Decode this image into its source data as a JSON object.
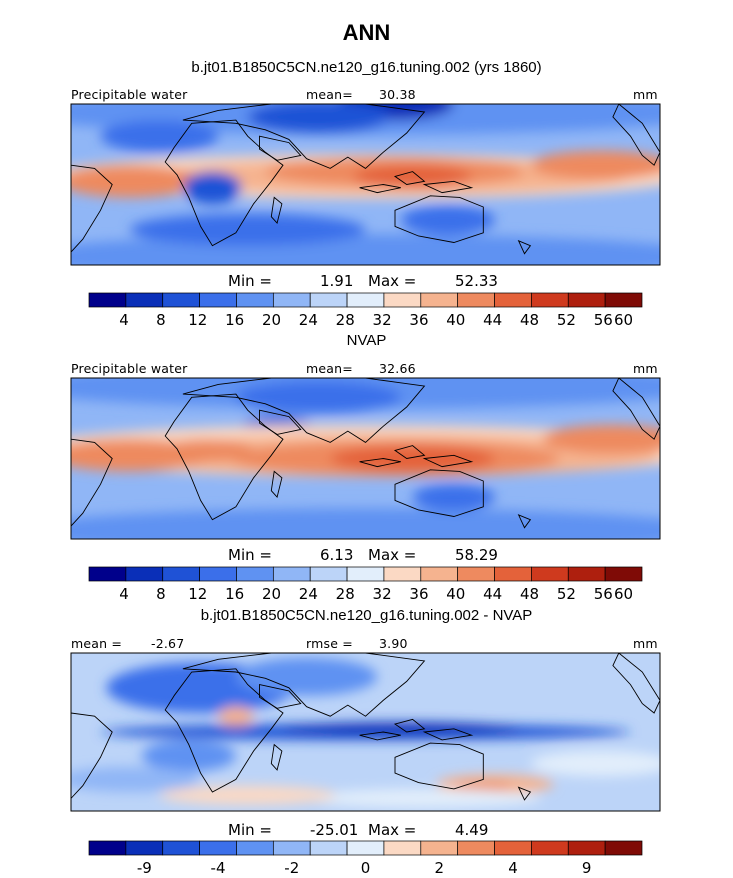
{
  "figure": {
    "title": "ANN",
    "model_case": "b.jt01.B1850C5CN.ne120_g16.tuning.002 (yrs 1860)",
    "obs_name": "NVAP",
    "diff_title": "b.jt01.B1850C5CN.ne120_g16.tuning.002 - NVAP"
  },
  "chart_data": [
    {
      "type": "heatmap",
      "panel": "model",
      "title": "b.jt01.B1850C5CN.ne120_g16.tuning.002 (yrs 1860)",
      "variable": "Precipitable water",
      "units": "mm",
      "mean_label": "mean=",
      "mean": "30.38",
      "min_label": "Min =",
      "min": "1.91",
      "max_label": "Max =",
      "max": "52.33",
      "colorbar_ticks": [
        "4",
        "8",
        "12",
        "16",
        "20",
        "24",
        "28",
        "32",
        "36",
        "40",
        "44",
        "48",
        "52",
        "56",
        "60"
      ],
      "colorbar_colors": [
        "#00008b",
        "#0a2fb8",
        "#1f52d6",
        "#3b6fea",
        "#5f92f2",
        "#90b6f6",
        "#bcd4f8",
        "#e2eefb",
        "#fbd9c4",
        "#f5b38f",
        "#ee8a5f",
        "#e4623a",
        "#cf3a1e",
        "#ae1f0e",
        "#7f0b06"
      ]
    },
    {
      "type": "heatmap",
      "panel": "obs",
      "title": "NVAP",
      "variable": "Precipitable water",
      "units": "mm",
      "mean_label": "mean=",
      "mean": "32.66",
      "min_label": "Min =",
      "min": "6.13",
      "max_label": "Max =",
      "max": "58.29",
      "colorbar_ticks": [
        "4",
        "8",
        "12",
        "16",
        "20",
        "24",
        "28",
        "32",
        "36",
        "40",
        "44",
        "48",
        "52",
        "56",
        "60"
      ],
      "colorbar_colors": [
        "#00008b",
        "#0a2fb8",
        "#1f52d6",
        "#3b6fea",
        "#5f92f2",
        "#90b6f6",
        "#bcd4f8",
        "#e2eefb",
        "#fbd9c4",
        "#f5b38f",
        "#ee8a5f",
        "#e4623a",
        "#cf3a1e",
        "#ae1f0e",
        "#7f0b06"
      ]
    },
    {
      "type": "heatmap",
      "panel": "difference",
      "title": "b.jt01.B1850C5CN.ne120_g16.tuning.002 - NVAP",
      "units": "mm",
      "mean_label": "mean =",
      "mean": "-2.67",
      "rmse_label": "rmse =",
      "rmse": "3.90",
      "min_label": "Min =",
      "min": "-25.01",
      "max_label": "Max =",
      "max": "4.49",
      "colorbar_ticks": [
        "-9",
        "-4",
        "-2",
        "0",
        "2",
        "4",
        "9"
      ],
      "colorbar_colors": [
        "#00008b",
        "#0a2fb8",
        "#1f52d6",
        "#3b6fea",
        "#5f92f2",
        "#90b6f6",
        "#bcd4f8",
        "#e2eefb",
        "#fbd9c4",
        "#f5b38f",
        "#ee8a5f",
        "#e4623a",
        "#cf3a1e",
        "#ae1f0e",
        "#7f0b06"
      ]
    }
  ]
}
